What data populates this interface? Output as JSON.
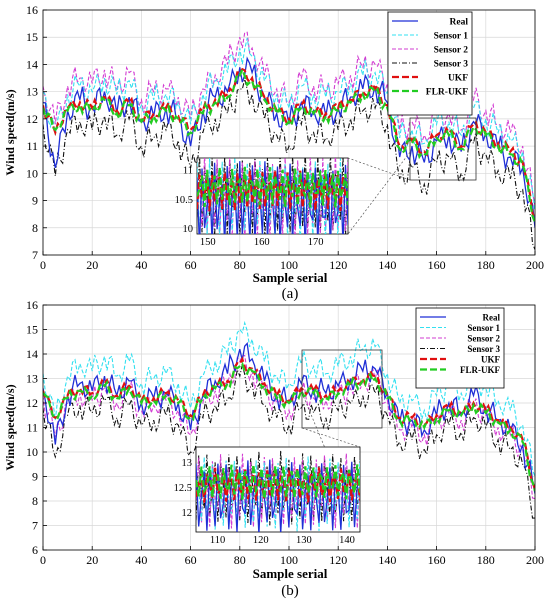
{
  "colors": {
    "real": "#1f2fd6",
    "sensor1": "#33e0f0",
    "sensor2": "#d23cd2",
    "sensor3": "#111111",
    "ukf": "#e01010",
    "flr_ukf": "#22cc22"
  },
  "chart_data": [
    {
      "type": "line",
      "panel_label": "(a)",
      "xlabel": "Sample serial",
      "ylabel": "Wind speed(m/s)",
      "xlim": [
        0,
        200
      ],
      "ylim": [
        7,
        16
      ],
      "xticks": [
        0,
        20,
        40,
        60,
        80,
        100,
        120,
        140,
        160,
        180,
        200
      ],
      "yticks": [
        7,
        8,
        9,
        10,
        11,
        12,
        13,
        14,
        15,
        16
      ],
      "grid": true,
      "legend_position": "top-right",
      "x": [
        0,
        5,
        10,
        15,
        20,
        25,
        30,
        35,
        40,
        45,
        50,
        55,
        60,
        65,
        70,
        75,
        80,
        85,
        90,
        95,
        100,
        105,
        110,
        115,
        120,
        125,
        130,
        135,
        140,
        145,
        150,
        155,
        160,
        165,
        170,
        175,
        180,
        185,
        190,
        195,
        200
      ],
      "series": [
        {
          "name": "Real",
          "style": "solid",
          "values": [
            12.6,
            10.2,
            12.3,
            12.7,
            12.4,
            13.0,
            12.2,
            12.8,
            11.9,
            12.1,
            12.4,
            12.0,
            11.0,
            12.3,
            12.8,
            13.0,
            13.9,
            13.7,
            12.8,
            12.2,
            11.8,
            12.6,
            12.3,
            12.1,
            12.4,
            12.8,
            13.1,
            13.2,
            12.6,
            10.6,
            11.0,
            10.4,
            11.2,
            11.4,
            10.8,
            11.9,
            11.5,
            10.9,
            10.6,
            10.2,
            8.0
          ]
        },
        {
          "name": "Sensor 1",
          "style": "dash",
          "values": [
            13.0,
            11.4,
            12.9,
            13.2,
            13.0,
            13.5,
            12.9,
            13.4,
            12.5,
            12.7,
            12.9,
            12.6,
            11.8,
            12.9,
            13.4,
            13.7,
            14.6,
            14.3,
            13.4,
            12.9,
            12.4,
            13.2,
            12.9,
            12.8,
            13.0,
            13.3,
            13.6,
            13.7,
            13.0,
            11.3,
            11.6,
            11.1,
            11.8,
            11.9,
            11.4,
            12.4,
            12.0,
            11.5,
            11.2,
            10.8,
            8.6
          ]
        },
        {
          "name": "Sensor 2",
          "style": "dash",
          "values": [
            13.2,
            11.8,
            13.2,
            13.5,
            13.3,
            13.8,
            13.1,
            13.7,
            12.7,
            13.0,
            13.1,
            12.8,
            12.0,
            13.1,
            13.6,
            14.0,
            15.0,
            14.6,
            13.6,
            13.1,
            12.6,
            13.5,
            13.2,
            13.0,
            13.3,
            13.6,
            13.9,
            14.0,
            13.3,
            11.6,
            11.9,
            11.4,
            12.1,
            12.2,
            11.6,
            12.7,
            12.3,
            11.8,
            11.5,
            11.0,
            8.8
          ]
        },
        {
          "name": "Sensor 3",
          "style": "dashdot",
          "values": [
            11.8,
            9.9,
            11.6,
            11.9,
            11.6,
            12.1,
            11.4,
            12.0,
            11.0,
            11.3,
            11.6,
            11.2,
            10.2,
            11.5,
            12.0,
            12.2,
            13.1,
            12.9,
            12.0,
            11.4,
            11.0,
            11.8,
            11.5,
            11.3,
            11.6,
            12.0,
            12.3,
            12.4,
            11.8,
            9.8,
            10.2,
            9.6,
            10.4,
            10.6,
            10.0,
            11.1,
            10.7,
            10.1,
            9.8,
            9.4,
            7.2
          ]
        },
        {
          "name": "UKF",
          "style": "dash-thick",
          "values": [
            12.5,
            11.5,
            12.4,
            12.6,
            12.4,
            12.8,
            12.3,
            12.6,
            12.0,
            12.2,
            12.4,
            12.1,
            11.6,
            12.3,
            12.7,
            12.9,
            13.7,
            13.5,
            12.8,
            12.3,
            12.0,
            12.5,
            12.3,
            12.2,
            12.4,
            12.7,
            13.0,
            13.1,
            12.5,
            11.0,
            11.2,
            10.8,
            11.4,
            11.5,
            11.0,
            11.8,
            11.5,
            11.1,
            10.8,
            10.4,
            8.3
          ]
        },
        {
          "name": "FLR-UKF",
          "style": "dash-thick",
          "values": [
            12.4,
            11.6,
            12.3,
            12.5,
            12.3,
            12.7,
            12.2,
            12.5,
            11.9,
            12.1,
            12.3,
            12.0,
            11.5,
            12.2,
            12.6,
            12.8,
            13.6,
            13.4,
            12.7,
            12.2,
            11.9,
            12.4,
            12.2,
            12.1,
            12.3,
            12.6,
            12.9,
            13.0,
            12.4,
            10.9,
            11.1,
            10.7,
            11.3,
            11.4,
            10.9,
            11.7,
            11.4,
            11.0,
            10.7,
            10.3,
            8.2
          ]
        }
      ],
      "inset": {
        "xlim": [
          148,
          176
        ],
        "ylim": [
          9.9,
          11.2
        ],
        "xticks": [
          150,
          160,
          170
        ],
        "yticks": [
          10,
          10.5,
          11
        ]
      }
    },
    {
      "type": "line",
      "panel_label": "(b)",
      "xlabel": "Sample serial",
      "ylabel": "Wind speed(m/s)",
      "xlim": [
        0,
        200
      ],
      "ylim": [
        6,
        16
      ],
      "xticks": [
        0,
        20,
        40,
        60,
        80,
        100,
        120,
        140,
        160,
        180,
        200
      ],
      "yticks": [
        6,
        7,
        8,
        9,
        10,
        11,
        12,
        13,
        14,
        15,
        16
      ],
      "grid": true,
      "legend_position": "top-right",
      "x": [
        0,
        5,
        10,
        15,
        20,
        25,
        30,
        35,
        40,
        45,
        50,
        55,
        60,
        65,
        70,
        75,
        80,
        85,
        90,
        95,
        100,
        105,
        110,
        115,
        120,
        125,
        130,
        135,
        140,
        145,
        150,
        155,
        160,
        165,
        170,
        175,
        180,
        185,
        190,
        195,
        200
      ],
      "series": [
        {
          "name": "Real",
          "style": "solid",
          "values": [
            12.6,
            10.3,
            12.3,
            12.8,
            12.5,
            13.1,
            12.3,
            12.9,
            12.0,
            12.2,
            12.4,
            12.0,
            10.9,
            12.3,
            12.9,
            13.2,
            14.2,
            13.8,
            12.9,
            12.3,
            12.0,
            12.8,
            12.6,
            12.4,
            12.7,
            13.0,
            13.3,
            13.4,
            12.4,
            11.2,
            11.3,
            10.9,
            11.5,
            12.0,
            11.6,
            12.3,
            11.8,
            11.3,
            10.9,
            10.3,
            8.3
          ]
        },
        {
          "name": "Sensor 1",
          "style": "dash",
          "values": [
            13.2,
            11.3,
            13.1,
            13.6,
            13.3,
            13.9,
            13.1,
            13.7,
            12.8,
            13.0,
            13.2,
            12.8,
            11.8,
            13.1,
            13.7,
            14.0,
            15.0,
            14.6,
            13.7,
            13.1,
            12.8,
            13.6,
            13.5,
            13.2,
            13.5,
            13.9,
            14.2,
            14.3,
            13.2,
            12.0,
            12.1,
            11.7,
            12.3,
            12.8,
            12.4,
            13.1,
            12.6,
            12.1,
            11.7,
            11.1,
            9.0
          ]
        },
        {
          "name": "Sensor 2",
          "style": "dash",
          "values": [
            12.3,
            10.6,
            12.0,
            12.4,
            12.1,
            12.6,
            12.0,
            12.5,
            11.7,
            11.9,
            12.1,
            11.7,
            10.7,
            12.0,
            12.5,
            12.8,
            13.7,
            13.3,
            12.5,
            12.0,
            11.7,
            12.4,
            12.2,
            12.1,
            12.3,
            12.6,
            12.9,
            13.0,
            12.1,
            10.9,
            11.0,
            10.7,
            11.2,
            11.6,
            11.3,
            11.9,
            11.5,
            11.0,
            10.7,
            10.1,
            8.1
          ]
        },
        {
          "name": "Sensor 3",
          "style": "dashdot",
          "values": [
            11.8,
            9.8,
            11.5,
            11.9,
            11.6,
            12.1,
            11.4,
            11.9,
            11.1,
            11.3,
            11.5,
            11.1,
            10.0,
            11.4,
            11.9,
            12.2,
            13.1,
            12.8,
            11.9,
            11.4,
            11.1,
            11.8,
            11.6,
            11.4,
            11.7,
            12.0,
            12.3,
            12.4,
            11.5,
            10.4,
            10.5,
            10.1,
            10.7,
            11.1,
            10.8,
            11.4,
            11.0,
            10.5,
            10.1,
            9.5,
            7.3
          ]
        },
        {
          "name": "UKF",
          "style": "dash-thick",
          "values": [
            12.5,
            11.4,
            12.3,
            12.6,
            12.4,
            12.8,
            12.3,
            12.7,
            12.1,
            12.2,
            12.4,
            12.1,
            11.5,
            12.3,
            12.7,
            12.9,
            13.6,
            13.4,
            12.8,
            12.3,
            12.1,
            12.6,
            12.5,
            12.3,
            12.5,
            12.8,
            13.0,
            13.1,
            12.3,
            11.4,
            11.4,
            11.1,
            11.5,
            11.8,
            11.6,
            12.0,
            11.7,
            11.3,
            11.0,
            10.5,
            8.5
          ]
        },
        {
          "name": "FLR-UKF",
          "style": "dash-thick",
          "values": [
            12.4,
            11.5,
            12.2,
            12.5,
            12.3,
            12.7,
            12.2,
            12.6,
            12.0,
            12.1,
            12.3,
            12.0,
            11.4,
            12.2,
            12.6,
            12.8,
            13.5,
            13.3,
            12.7,
            12.2,
            12.0,
            12.5,
            12.4,
            12.2,
            12.4,
            12.7,
            12.9,
            13.0,
            12.2,
            11.3,
            11.3,
            11.0,
            11.4,
            11.7,
            11.5,
            11.9,
            11.6,
            11.2,
            10.9,
            10.4,
            8.4
          ]
        }
      ],
      "inset": {
        "xlim": [
          105,
          143
        ],
        "ylim": [
          11.6,
          13.3
        ],
        "xticks": [
          110,
          120,
          130,
          140
        ],
        "yticks": [
          12,
          12.5,
          13
        ]
      }
    }
  ]
}
